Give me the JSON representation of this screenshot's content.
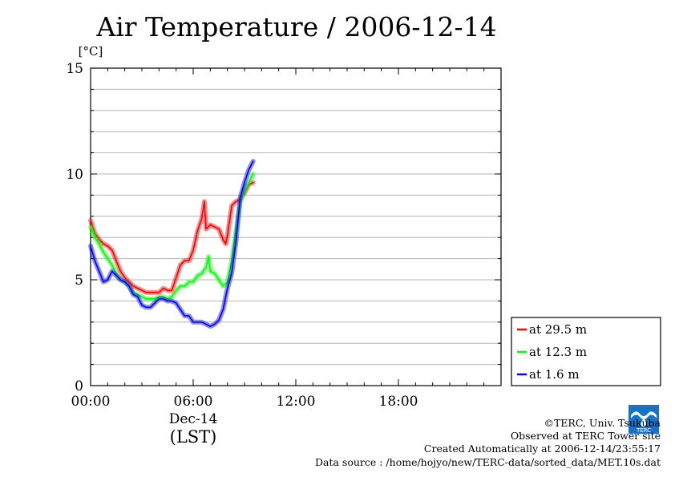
{
  "chart_data": {
    "type": "line",
    "title": "Air Temperature / 2006-12-14",
    "ylabel": "[°C]",
    "xlabel": "(LST)",
    "x_date_label": "Dec-14",
    "x_unit": "hours (LST)",
    "xlim": [
      0,
      24
    ],
    "ylim": [
      0,
      15
    ],
    "grid": true,
    "legend_position": "right-bottom, outside plot",
    "x_ticks": [
      {
        "value": 0,
        "label": "00:00"
      },
      {
        "value": 6,
        "label": "06:00"
      },
      {
        "value": 12,
        "label": "12:00"
      },
      {
        "value": 18,
        "label": "18:00"
      }
    ],
    "y_ticks": [
      {
        "value": 0,
        "label": "0"
      },
      {
        "value": 5,
        "label": "5"
      },
      {
        "value": 10,
        "label": "10"
      },
      {
        "value": 15,
        "label": "15"
      }
    ],
    "series": [
      {
        "name": "at 29.5 m",
        "color": "#ff0000",
        "x": [
          0,
          0.25,
          0.5,
          0.75,
          1,
          1.25,
          1.5,
          1.75,
          2,
          2.25,
          2.5,
          2.75,
          3,
          3.25,
          3.5,
          3.75,
          4,
          4.25,
          4.5,
          4.75,
          5,
          5.25,
          5.5,
          5.75,
          6,
          6.25,
          6.5,
          6.65,
          6.75,
          7,
          7.25,
          7.5,
          7.75,
          7.9,
          8,
          8.25,
          8.5,
          8.75,
          9,
          9.25,
          9.5
        ],
        "values": [
          7.8,
          7.2,
          6.9,
          6.7,
          6.6,
          6.4,
          5.9,
          5.4,
          5.1,
          4.9,
          4.7,
          4.6,
          4.5,
          4.4,
          4.4,
          4.4,
          4.4,
          4.6,
          4.5,
          4.5,
          5.1,
          5.7,
          5.9,
          5.9,
          6.4,
          7.3,
          7.9,
          8.7,
          7.4,
          7.6,
          7.5,
          7.4,
          6.9,
          6.7,
          7.1,
          8.5,
          8.7,
          8.8,
          9.1,
          9.5,
          9.6
        ]
      },
      {
        "name": "at 12.3 m",
        "color": "#00ff00",
        "x": [
          0,
          0.25,
          0.5,
          0.75,
          1,
          1.25,
          1.5,
          1.75,
          2,
          2.25,
          2.5,
          2.75,
          3,
          3.25,
          3.5,
          3.75,
          4,
          4.25,
          4.5,
          4.75,
          5,
          5.25,
          5.5,
          5.75,
          6,
          6.25,
          6.5,
          6.75,
          6.9,
          7,
          7.25,
          7.5,
          7.75,
          8,
          8.25,
          8.5,
          8.75,
          9,
          9.25,
          9.5
        ],
        "values": [
          7.5,
          7.0,
          6.7,
          6.3,
          6.0,
          5.7,
          5.3,
          5.0,
          4.9,
          4.7,
          4.4,
          4.3,
          4.2,
          4.1,
          4.1,
          4.1,
          4.2,
          4.2,
          4.1,
          4.2,
          4.5,
          4.7,
          4.7,
          4.9,
          4.9,
          5.2,
          5.3,
          5.6,
          6.1,
          5.4,
          5.3,
          5.0,
          4.7,
          4.9,
          5.9,
          7.3,
          8.7,
          9.2,
          9.6,
          10.0
        ]
      },
      {
        "name": "at 1.6 m",
        "color": "#0000ff",
        "x": [
          0,
          0.25,
          0.5,
          0.75,
          1,
          1.25,
          1.5,
          1.75,
          2,
          2.25,
          2.5,
          2.75,
          3,
          3.25,
          3.5,
          3.75,
          4,
          4.25,
          4.5,
          4.75,
          5,
          5.25,
          5.5,
          5.75,
          6,
          6.25,
          6.5,
          6.75,
          7,
          7.25,
          7.5,
          7.75,
          8,
          8.25,
          8.5,
          8.75,
          9,
          9.25,
          9.5
        ],
        "values": [
          6.6,
          5.9,
          5.4,
          4.9,
          5.0,
          5.4,
          5.2,
          5.0,
          4.9,
          4.7,
          4.3,
          4.2,
          3.8,
          3.7,
          3.7,
          3.9,
          4.1,
          4.1,
          4.0,
          4.0,
          3.9,
          3.6,
          3.3,
          3.3,
          3.0,
          3.0,
          3.0,
          2.9,
          2.8,
          2.9,
          3.1,
          3.6,
          4.6,
          5.3,
          6.8,
          8.9,
          9.6,
          10.2,
          10.6
        ]
      }
    ]
  },
  "footer": {
    "copyright": "©TERC, Univ. Tsukuba",
    "site": "Observed at TERC Tower site",
    "created": "Created Automatically at 2006-12-14/23:55:17",
    "source": "Data source : /home/hojyo/new/TERC-data/sorted_data/MET.10s.dat"
  },
  "logo": {
    "name": "terc-logo",
    "text": "TERC",
    "color": "#1a72c8"
  }
}
